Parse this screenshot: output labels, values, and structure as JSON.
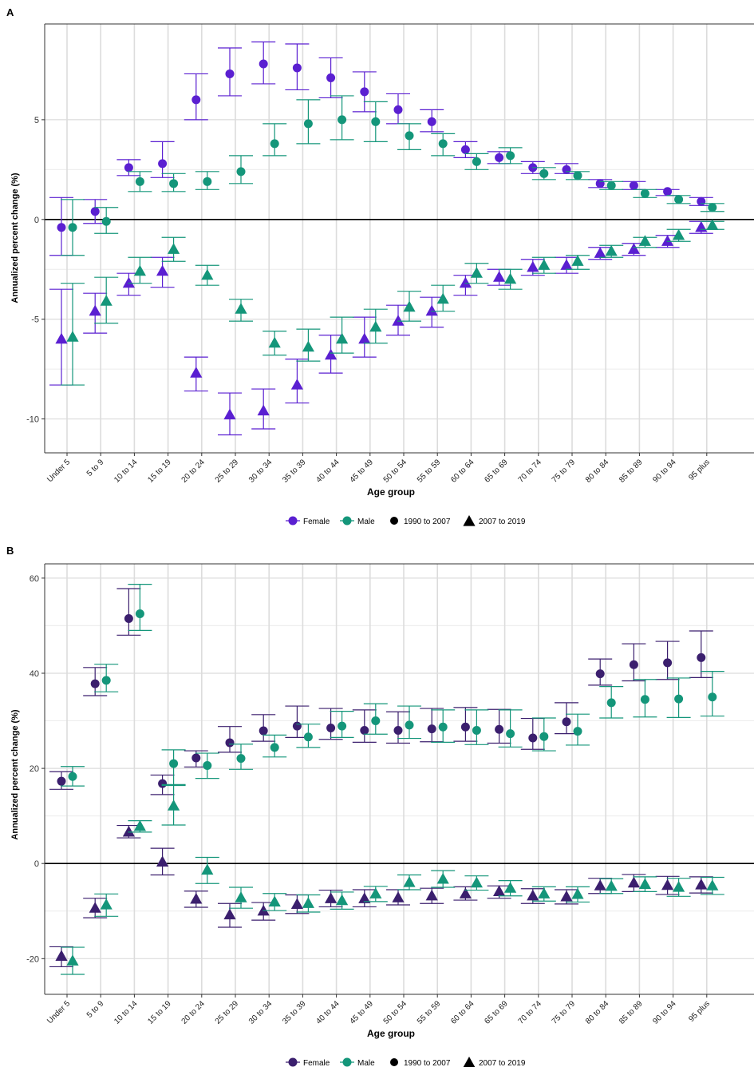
{
  "chart_data": [
    {
      "panel_label": "A",
      "type": "scatter",
      "xlabel": "Age group",
      "ylabel": "Annualized percent change (%)",
      "ylim": [
        -11.7,
        9.8
      ],
      "yticks": [
        -10,
        -5,
        0,
        5
      ],
      "grid": true,
      "categories": [
        "Under 5",
        "5 to 9",
        "10 to 14",
        "15 to 19",
        "20 to 24",
        "25 to 29",
        "30 to 34",
        "35 to 39",
        "40 to 44",
        "45 to 49",
        "50 to 54",
        "55 to 59",
        "60 to 64",
        "65 to 69",
        "70 to 74",
        "75 to 79",
        "80 to 84",
        "85 to 89",
        "90 to 94",
        "95 plus"
      ],
      "sexes": [
        {
          "name": "Female",
          "color": "#5a1fd1"
        },
        {
          "name": "Male",
          "color": "#14967a"
        }
      ],
      "periods": [
        {
          "name": "1990 to 2007",
          "shape": "circle"
        },
        {
          "name": "2007 to 2019",
          "shape": "triangle"
        }
      ],
      "series": [
        {
          "sex": "Female",
          "period": "1990 to 2007",
          "values": [
            -0.4,
            0.4,
            2.6,
            2.8,
            6.0,
            7.3,
            7.8,
            7.6,
            7.1,
            6.4,
            5.5,
            4.9,
            3.5,
            3.1,
            2.6,
            2.5,
            1.8,
            1.7,
            1.4,
            0.9
          ],
          "lower": [
            -1.8,
            -0.2,
            2.2,
            2.1,
            5.0,
            6.2,
            6.8,
            6.5,
            6.1,
            5.4,
            4.8,
            4.4,
            3.1,
            2.8,
            2.3,
            2.3,
            1.6,
            1.5,
            1.2,
            0.7
          ],
          "upper": [
            1.1,
            1.0,
            3.0,
            3.9,
            7.3,
            8.6,
            8.9,
            8.8,
            8.1,
            7.4,
            6.3,
            5.5,
            3.9,
            3.4,
            2.9,
            2.8,
            2.0,
            1.9,
            1.5,
            1.1
          ]
        },
        {
          "sex": "Male",
          "period": "1990 to 2007",
          "values": [
            -0.4,
            -0.1,
            1.9,
            1.8,
            1.9,
            2.4,
            3.8,
            4.8,
            5.0,
            4.9,
            4.2,
            3.8,
            2.9,
            3.2,
            2.3,
            2.2,
            1.7,
            1.3,
            1.0,
            0.6
          ],
          "lower": [
            -1.8,
            -0.7,
            1.4,
            1.4,
            1.5,
            1.8,
            3.2,
            3.8,
            4.0,
            3.9,
            3.5,
            3.2,
            2.5,
            2.8,
            2.0,
            2.0,
            1.5,
            1.1,
            0.8,
            0.4
          ],
          "upper": [
            1.0,
            0.6,
            2.4,
            2.3,
            2.4,
            3.2,
            4.8,
            6.0,
            6.2,
            5.9,
            4.8,
            4.3,
            3.3,
            3.6,
            2.6,
            2.4,
            1.9,
            1.5,
            1.2,
            0.8
          ]
        },
        {
          "sex": "Female",
          "period": "2007 to 2019",
          "values": [
            -6.0,
            -4.6,
            -3.2,
            -2.6,
            -7.7,
            -9.8,
            -9.6,
            -8.3,
            -6.8,
            -6.0,
            -5.1,
            -4.6,
            -3.2,
            -2.9,
            -2.4,
            -2.3,
            -1.7,
            -1.5,
            -1.1,
            -0.4
          ],
          "lower": [
            -8.3,
            -5.7,
            -3.8,
            -3.4,
            -8.6,
            -10.8,
            -10.5,
            -9.2,
            -7.7,
            -6.9,
            -5.8,
            -5.4,
            -3.8,
            -3.3,
            -2.8,
            -2.7,
            -2.0,
            -1.8,
            -1.4,
            -0.7
          ],
          "upper": [
            -3.5,
            -3.7,
            -2.7,
            -1.9,
            -6.9,
            -8.7,
            -8.5,
            -7.0,
            -5.8,
            -4.9,
            -4.3,
            -3.9,
            -2.8,
            -2.5,
            -2.0,
            -1.9,
            -1.4,
            -1.2,
            -0.8,
            -0.1
          ]
        },
        {
          "sex": "Male",
          "period": "2007 to 2019",
          "values": [
            -5.9,
            -4.1,
            -2.6,
            -1.5,
            -2.8,
            -4.5,
            -6.2,
            -6.4,
            -6.0,
            -5.4,
            -4.4,
            -4.0,
            -2.7,
            -3.0,
            -2.3,
            -2.1,
            -1.6,
            -1.1,
            -0.8,
            -0.3
          ],
          "lower": [
            -8.3,
            -5.2,
            -3.2,
            -2.1,
            -3.3,
            -5.1,
            -6.8,
            -7.1,
            -6.7,
            -6.2,
            -5.1,
            -4.6,
            -3.2,
            -3.5,
            -2.7,
            -2.5,
            -1.9,
            -1.4,
            -1.1,
            -0.5
          ],
          "upper": [
            -3.2,
            -2.9,
            -1.9,
            -0.9,
            -2.3,
            -4.0,
            -5.6,
            -5.5,
            -4.9,
            -4.5,
            -3.6,
            -3.3,
            -2.2,
            -2.5,
            -1.9,
            -1.8,
            -1.3,
            -0.9,
            -0.5,
            -0.1
          ]
        }
      ]
    },
    {
      "panel_label": "B",
      "type": "scatter",
      "xlabel": "Age group",
      "ylabel": "Annualized percent change (%)",
      "ylim": [
        -27.5,
        63
      ],
      "yticks": [
        -20,
        0,
        20,
        40,
        60
      ],
      "grid": true,
      "categories": [
        "Under 5",
        "5 to 9",
        "10 to 14",
        "15 to 19",
        "20 to 24",
        "25 to 29",
        "30 to 34",
        "35 to 39",
        "40 to 44",
        "45 to 49",
        "50 to 54",
        "55 to 59",
        "60 to 64",
        "65 to 69",
        "70 to 74",
        "75 to 79",
        "80 to 84",
        "85 to 89",
        "90 to 94",
        "95 plus"
      ],
      "sexes": [
        {
          "name": "Female",
          "color": "#3b1f6e"
        },
        {
          "name": "Male",
          "color": "#14967a"
        }
      ],
      "periods": [
        {
          "name": "1990 to 2007",
          "shape": "circle"
        },
        {
          "name": "2007 to 2019",
          "shape": "triangle"
        }
      ],
      "series": [
        {
          "sex": "Female",
          "period": "1990 to 2007",
          "values": [
            17.3,
            37.8,
            51.5,
            16.8,
            22.2,
            25.4,
            27.9,
            28.9,
            28.5,
            28.0,
            28.0,
            28.3,
            28.7,
            28.2,
            26.4,
            29.8,
            39.9,
            41.8,
            42.2,
            43.3
          ],
          "lower": [
            15.6,
            35.3,
            48.0,
            14.5,
            20.3,
            23.4,
            25.7,
            26.5,
            26.1,
            25.5,
            25.3,
            25.6,
            25.7,
            25.3,
            24.0,
            27.3,
            37.5,
            38.4,
            38.7,
            39.1
          ],
          "upper": [
            19.3,
            41.2,
            57.8,
            18.6,
            23.7,
            28.8,
            31.3,
            33.1,
            32.6,
            32.3,
            31.9,
            32.6,
            32.8,
            32.4,
            30.5,
            33.8,
            43.0,
            46.2,
            46.7,
            48.9
          ]
        },
        {
          "sex": "Male",
          "period": "1990 to 2007",
          "values": [
            18.3,
            38.5,
            52.5,
            21.0,
            20.6,
            22.1,
            24.4,
            26.6,
            28.9,
            30.0,
            29.1,
            28.7,
            28.0,
            27.3,
            26.7,
            27.8,
            33.8,
            34.5,
            34.6,
            35.0
          ],
          "lower": [
            16.3,
            36.1,
            49.0,
            16.6,
            17.9,
            19.8,
            22.4,
            24.4,
            26.5,
            27.2,
            26.3,
            25.5,
            25.0,
            24.5,
            23.7,
            24.9,
            30.6,
            30.8,
            30.7,
            31.0
          ],
          "upper": [
            20.4,
            41.9,
            58.7,
            23.9,
            23.2,
            25.1,
            27.0,
            29.3,
            32.0,
            33.6,
            33.1,
            32.3,
            32.3,
            32.3,
            30.6,
            31.4,
            37.2,
            38.7,
            39.0,
            40.4
          ]
        },
        {
          "sex": "Female",
          "period": "2007 to 2019",
          "values": [
            -19.5,
            -9.4,
            6.6,
            0.3,
            -7.5,
            -10.8,
            -10.0,
            -8.6,
            -7.4,
            -7.4,
            -7.2,
            -6.8,
            -6.4,
            -5.9,
            -6.8,
            -7.0,
            -4.7,
            -4.1,
            -4.6,
            -4.5
          ],
          "lower": [
            -21.7,
            -11.4,
            5.4,
            -2.4,
            -9.2,
            -13.4,
            -11.9,
            -10.5,
            -9.1,
            -9.1,
            -8.7,
            -8.4,
            -7.7,
            -7.3,
            -8.4,
            -8.5,
            -6.3,
            -5.9,
            -6.5,
            -6.2
          ],
          "upper": [
            -17.5,
            -7.3,
            8.0,
            3.2,
            -5.8,
            -8.4,
            -8.2,
            -6.6,
            -5.6,
            -5.5,
            -5.5,
            -5.2,
            -4.9,
            -4.7,
            -5.3,
            -5.5,
            -3.1,
            -2.3,
            -2.7,
            -2.8
          ]
        },
        {
          "sex": "Male",
          "period": "2007 to 2019",
          "values": [
            -20.5,
            -8.7,
            7.8,
            12.1,
            -1.4,
            -7.2,
            -8.1,
            -8.4,
            -7.8,
            -6.4,
            -4.0,
            -3.3,
            -4.1,
            -5.2,
            -6.4,
            -6.5,
            -4.8,
            -4.4,
            -5.0,
            -4.7
          ],
          "lower": [
            -23.3,
            -11.1,
            6.6,
            8.1,
            -4.2,
            -9.4,
            -9.9,
            -10.2,
            -9.6,
            -8.0,
            -5.5,
            -5.0,
            -5.6,
            -6.8,
            -7.9,
            -8.1,
            -6.3,
            -5.9,
            -6.9,
            -6.5
          ],
          "upper": [
            -17.6,
            -6.4,
            9.0,
            16.4,
            1.3,
            -5.0,
            -6.3,
            -6.6,
            -6.0,
            -4.8,
            -2.4,
            -1.5,
            -2.6,
            -3.6,
            -4.9,
            -4.9,
            -3.2,
            -2.8,
            -3.1,
            -2.9
          ]
        }
      ]
    }
  ]
}
